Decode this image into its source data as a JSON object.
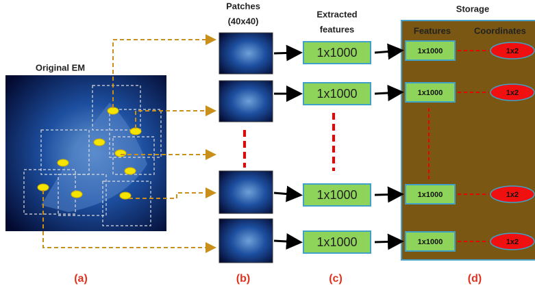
{
  "panel_a": {
    "title": "Original EM",
    "label": "(a)"
  },
  "panel_b": {
    "title_lines": [
      "Patches",
      "(40x40)"
    ],
    "label": "(b)"
  },
  "panel_c": {
    "title_lines": [
      "Extracted",
      "features"
    ],
    "features": [
      "1x1000",
      "1x1000",
      "1x1000",
      "1x1000"
    ],
    "label": "(c)"
  },
  "panel_d": {
    "title": "Storage",
    "column_headers": [
      "Features",
      "Coordinates"
    ],
    "features": [
      "1x1000",
      "1x1000",
      "1x1000",
      "1x1000"
    ],
    "coordinates": [
      "1x2",
      "1x2",
      "1x2",
      "1x2"
    ],
    "label": "(d)"
  }
}
